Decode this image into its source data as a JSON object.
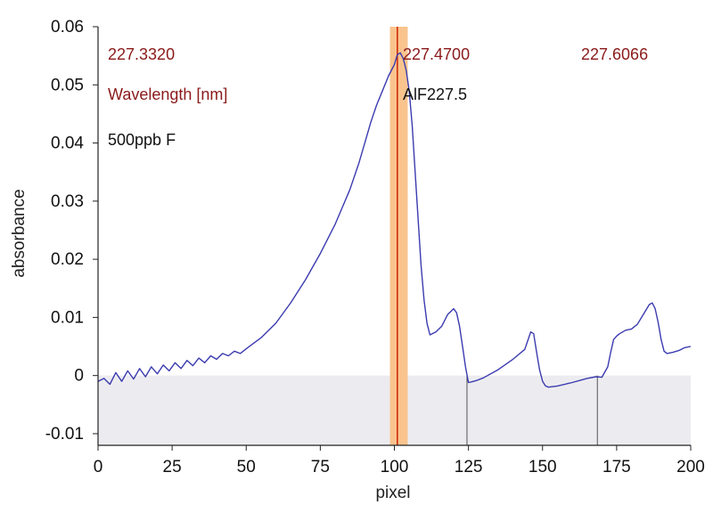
{
  "chart_data": {
    "type": "line",
    "xlabel": "pixel",
    "ylabel": "absorbance",
    "xlim": [
      0,
      200
    ],
    "ylim": [
      -0.012,
      0.06
    ],
    "x_ticks": [
      0,
      25,
      50,
      75,
      100,
      125,
      150,
      175,
      200
    ],
    "x_tick_labels": [
      "0",
      "25",
      "50",
      "75",
      "100",
      "125",
      "150",
      "175",
      "200"
    ],
    "y_ticks": [
      -0.01,
      0,
      0.01,
      0.02,
      0.03,
      0.04,
      0.05,
      0.06
    ],
    "y_tick_labels": [
      "-0.01",
      "0",
      "0.01",
      "0.02",
      "0.03",
      "0.04",
      "0.05",
      "0.06"
    ],
    "grid": false,
    "colors": {
      "series": "#3b3bb0",
      "highlight_band": "#f9c48e",
      "peak_line": "#cc2200",
      "wavelength_text": "#8b1a1a",
      "label_text": "#111111",
      "negative_region": "#ececf0",
      "marker_line": "#555555"
    },
    "series": [
      {
        "x": [
          0,
          2,
          4,
          6,
          8,
          10,
          12,
          14,
          16,
          18,
          20,
          22,
          24,
          26,
          28,
          30,
          32,
          34,
          36,
          38,
          40,
          42,
          44,
          46,
          48,
          50,
          55,
          60,
          65,
          70,
          75,
          80,
          85,
          88,
          90,
          92,
          94,
          96,
          98,
          100,
          101,
          102,
          103,
          104,
          105,
          106,
          107,
          108,
          109,
          110,
          111,
          112,
          114,
          116,
          118,
          120,
          121,
          122,
          123,
          124,
          125,
          126,
          128,
          130,
          135,
          140,
          144,
          146,
          147,
          148,
          149,
          150,
          151,
          152,
          155,
          160,
          165,
          168,
          170,
          172,
          173,
          174,
          175,
          176,
          178,
          180,
          182,
          184,
          186,
          187,
          188,
          189,
          190,
          191,
          192,
          194,
          196,
          198,
          200
        ],
        "y": [
          -0.001,
          -0.0005,
          -0.0015,
          0.0005,
          -0.001,
          0.0008,
          -0.0006,
          0.0012,
          -0.0002,
          0.0015,
          0.0003,
          0.0018,
          0.0008,
          0.0022,
          0.0012,
          0.0026,
          0.0017,
          0.003,
          0.0022,
          0.0034,
          0.0028,
          0.0038,
          0.0034,
          0.0042,
          0.0038,
          0.0046,
          0.0065,
          0.009,
          0.0125,
          0.0165,
          0.021,
          0.026,
          0.032,
          0.0365,
          0.04,
          0.0435,
          0.0465,
          0.049,
          0.0515,
          0.0535,
          0.0552,
          0.0555,
          0.0545,
          0.0525,
          0.049,
          0.043,
          0.035,
          0.027,
          0.019,
          0.013,
          0.009,
          0.007,
          0.0075,
          0.0085,
          0.0105,
          0.0115,
          0.0108,
          0.0085,
          0.005,
          0.0015,
          -0.0012,
          -0.0011,
          -0.0008,
          -0.0004,
          0.001,
          0.0028,
          0.0045,
          0.0075,
          0.0072,
          0.004,
          0.001,
          -0.001,
          -0.0018,
          -0.002,
          -0.0018,
          -0.0012,
          -0.0005,
          -0.0002,
          -0.0003,
          0.0015,
          0.004,
          0.0062,
          0.0068,
          0.0072,
          0.0078,
          0.008,
          0.0088,
          0.0105,
          0.0122,
          0.0125,
          0.0115,
          0.0092,
          0.0062,
          0.0042,
          0.0038,
          0.004,
          0.0043,
          0.0048,
          0.005
        ]
      }
    ],
    "highlight_band": {
      "x_range": [
        98.5,
        104.5
      ]
    },
    "peak_marker_x": 101,
    "vertical_markers_x": [
      124.5,
      168.5
    ],
    "annotations": {
      "wavelength_left": "227.3320",
      "wavelength_center": "227.4700",
      "wavelength_right": "227.6066",
      "wavelength_unit": "Wavelength [nm]",
      "line_label": "AlF227.5",
      "sample_label": "500ppb F"
    }
  }
}
